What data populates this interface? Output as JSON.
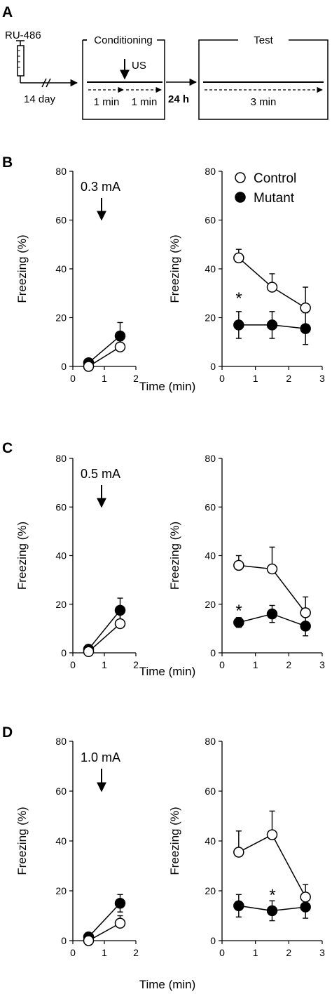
{
  "protocol": {
    "panel_label": "A",
    "drug": "RU-486",
    "interval": "14 day",
    "conditioning_title": "Conditioning",
    "us_label": "US",
    "cond_seg1": "1 min",
    "cond_seg2": "1 min",
    "gap": "24 h",
    "test_title": "Test",
    "test_seg": "3 min"
  },
  "chart_data": [
    {
      "type": "scatter",
      "panel": "B",
      "phase": "conditioning",
      "annotation": "0.3 mA",
      "xlabel": "",
      "ylabel": "Freezing (%)",
      "xlim": [
        0,
        2
      ],
      "ylim": [
        0,
        80
      ],
      "xticks": [
        "0",
        "1",
        "2"
      ],
      "yticks": [
        "0",
        "20",
        "40",
        "60",
        "80"
      ],
      "x": [
        0.5,
        1.5
      ],
      "series": [
        {
          "name": "Control",
          "marker": "open",
          "values": [
            0,
            8
          ],
          "errors": [
            0.5,
            2.5
          ]
        },
        {
          "name": "Mutant",
          "marker": "filled",
          "values": [
            1.5,
            12.5
          ],
          "errors": [
            0.5,
            5.5
          ]
        }
      ]
    },
    {
      "type": "scatter",
      "panel": "B",
      "phase": "test",
      "xlabel": "Time (min)",
      "ylabel": "Freezing (%)",
      "xlim": [
        0,
        3
      ],
      "ylim": [
        0,
        80
      ],
      "xticks": [
        "0",
        "1",
        "2",
        "3"
      ],
      "yticks": [
        "0",
        "20",
        "40",
        "60",
        "80"
      ],
      "legend": [
        "Control",
        "Mutant"
      ],
      "legend_position": "top-right",
      "significance": "*",
      "x": [
        0.5,
        1.5,
        2.5
      ],
      "series": [
        {
          "name": "Control",
          "marker": "open",
          "values": [
            44.5,
            32.5,
            24
          ],
          "errors": [
            3.5,
            5.5,
            8.5
          ]
        },
        {
          "name": "Mutant",
          "marker": "filled",
          "values": [
            17,
            17,
            15.5
          ],
          "errors": [
            5.5,
            5.5,
            6.5
          ]
        }
      ]
    },
    {
      "type": "scatter",
      "panel": "C",
      "phase": "conditioning",
      "annotation": "0.5 mA",
      "xlabel": "",
      "ylabel": "Freezing (%)",
      "xlim": [
        0,
        2
      ],
      "ylim": [
        0,
        80
      ],
      "xticks": [
        "0",
        "1",
        "2"
      ],
      "yticks": [
        "0",
        "20",
        "40",
        "60",
        "80"
      ],
      "x": [
        0.5,
        1.5
      ],
      "series": [
        {
          "name": "Control",
          "marker": "open",
          "values": [
            0.5,
            12
          ],
          "errors": [
            0.5,
            4
          ]
        },
        {
          "name": "Mutant",
          "marker": "filled",
          "values": [
            1.5,
            17.5
          ],
          "errors": [
            0.5,
            5
          ]
        }
      ]
    },
    {
      "type": "scatter",
      "panel": "C",
      "phase": "test",
      "xlabel": "Time (min)",
      "ylabel": "Freezing (%)",
      "xlim": [
        0,
        3
      ],
      "ylim": [
        0,
        80
      ],
      "xticks": [
        "0",
        "1",
        "2",
        "3"
      ],
      "yticks": [
        "0",
        "20",
        "40",
        "60",
        "80"
      ],
      "significance": "*",
      "x": [
        0.5,
        1.5,
        2.5
      ],
      "series": [
        {
          "name": "Control",
          "marker": "open",
          "values": [
            36,
            34.5,
            16.5
          ],
          "errors": [
            4,
            9,
            6.5
          ]
        },
        {
          "name": "Mutant",
          "marker": "filled",
          "values": [
            12.5,
            16,
            11
          ],
          "errors": [
            2,
            3.5,
            4
          ]
        }
      ]
    },
    {
      "type": "scatter",
      "panel": "D",
      "phase": "conditioning",
      "annotation": "1.0 mA",
      "xlabel": "",
      "ylabel": "Freezing (%)",
      "xlim": [
        0,
        2
      ],
      "ylim": [
        0,
        80
      ],
      "xticks": [
        "0",
        "1",
        "2"
      ],
      "yticks": [
        "0",
        "20",
        "40",
        "60",
        "80"
      ],
      "x": [
        0.5,
        1.5
      ],
      "series": [
        {
          "name": "Control",
          "marker": "open",
          "values": [
            0,
            7
          ],
          "errors": [
            0.5,
            3
          ]
        },
        {
          "name": "Mutant",
          "marker": "filled",
          "values": [
            1.5,
            15
          ],
          "errors": [
            0.5,
            3.5
          ]
        }
      ]
    },
    {
      "type": "scatter",
      "panel": "D",
      "phase": "test",
      "xlabel": "Time (min)",
      "ylabel": "Freezing (%)",
      "xlim": [
        0,
        3
      ],
      "ylim": [
        0,
        80
      ],
      "xticks": [
        "0",
        "1",
        "2",
        "3"
      ],
      "yticks": [
        "0",
        "20",
        "40",
        "60",
        "80"
      ],
      "significance": "*",
      "x": [
        0.5,
        1.5,
        2.5
      ],
      "series": [
        {
          "name": "Control",
          "marker": "open",
          "values": [
            35.5,
            42.5,
            17.5
          ],
          "errors": [
            8.5,
            9.5,
            5
          ]
        },
        {
          "name": "Mutant",
          "marker": "filled",
          "values": [
            14,
            12,
            13.5
          ],
          "errors": [
            4.5,
            4,
            4.5
          ]
        }
      ]
    }
  ]
}
